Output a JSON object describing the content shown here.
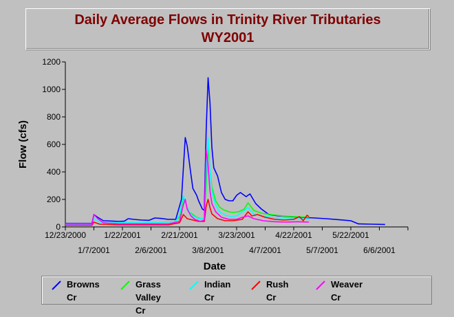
{
  "chart_data": {
    "type": "line",
    "title": "Daily Average Flows in Trinity River Tributaries",
    "subtitle": "WY2001",
    "xlabel": "Date",
    "ylabel": "Flow (cfs)",
    "xlim": [
      "2000-12-23",
      "2001-06-21"
    ],
    "ylim": [
      0,
      1200
    ],
    "yticks": [
      0,
      200,
      400,
      600,
      800,
      1000,
      1200
    ],
    "xticks_upper": [
      "12/23/2000",
      "1/22/2001",
      "2/21/2001",
      "3/23/2001",
      "4/22/2001",
      "5/22/2001"
    ],
    "xticks_lower": [
      "1/7/2001",
      "2/6/2001",
      "3/8/2001",
      "4/7/2001",
      "5/7/2001",
      "6/6/2001"
    ],
    "grid": false,
    "legend": "bottom",
    "series": [
      {
        "name": "Browns Cr",
        "color": "#0000ff",
        "points": [
          [
            "2000-12-23",
            25
          ],
          [
            "2001-01-06",
            25
          ],
          [
            "2001-01-07",
            90
          ],
          [
            "2001-01-09",
            70
          ],
          [
            "2001-01-12",
            45
          ],
          [
            "2001-01-17",
            42
          ],
          [
            "2001-01-20",
            40
          ],
          [
            "2001-01-23",
            42
          ],
          [
            "2001-01-25",
            60
          ],
          [
            "2001-01-28",
            55
          ],
          [
            "2001-02-01",
            50
          ],
          [
            "2001-02-05",
            48
          ],
          [
            "2001-02-08",
            65
          ],
          [
            "2001-02-11",
            62
          ],
          [
            "2001-02-15",
            55
          ],
          [
            "2001-02-19",
            55
          ],
          [
            "2001-02-22",
            200
          ],
          [
            "2001-02-24",
            650
          ],
          [
            "2001-02-25",
            590
          ],
          [
            "2001-02-27",
            380
          ],
          [
            "2001-02-28",
            280
          ],
          [
            "2001-03-02",
            230
          ],
          [
            "2001-03-03",
            190
          ],
          [
            "2001-03-05",
            130
          ],
          [
            "2001-03-06",
            120
          ],
          [
            "2001-03-07",
            700
          ],
          [
            "2001-03-08",
            1085
          ],
          [
            "2001-03-09",
            900
          ],
          [
            "2001-03-10",
            580
          ],
          [
            "2001-03-11",
            430
          ],
          [
            "2001-03-13",
            370
          ],
          [
            "2001-03-15",
            250
          ],
          [
            "2001-03-17",
            200
          ],
          [
            "2001-03-19",
            190
          ],
          [
            "2001-03-21",
            190
          ],
          [
            "2001-03-23",
            230
          ],
          [
            "2001-03-25",
            250
          ],
          [
            "2001-03-28",
            220
          ],
          [
            "2001-03-30",
            240
          ],
          [
            "2001-04-02",
            170
          ],
          [
            "2001-04-05",
            130
          ],
          [
            "2001-04-09",
            90
          ],
          [
            "2001-04-14",
            80
          ],
          [
            "2001-04-20",
            75
          ],
          [
            "2001-04-26",
            70
          ],
          [
            "2001-05-03",
            65
          ],
          [
            "2001-05-09",
            60
          ],
          [
            "2001-05-16",
            52
          ],
          [
            "2001-05-22",
            45
          ],
          [
            "2001-05-26",
            22
          ],
          [
            "2001-06-02",
            20
          ],
          [
            "2001-06-09",
            18
          ]
        ]
      },
      {
        "name": "Grass Valley Cr",
        "color": "#00ff00",
        "points": [
          [
            "2001-02-18",
            35
          ],
          [
            "2001-02-21",
            70
          ],
          [
            "2001-02-23",
            210
          ],
          [
            "2001-02-24",
            180
          ],
          [
            "2001-02-26",
            110
          ],
          [
            "2001-02-28",
            90
          ],
          [
            "2001-03-02",
            70
          ],
          [
            "2001-03-04",
            60
          ],
          [
            "2001-03-06",
            60
          ],
          [
            "2001-03-07",
            300
          ],
          [
            "2001-03-08",
            580
          ],
          [
            "2001-03-09",
            420
          ],
          [
            "2001-03-10",
            290
          ],
          [
            "2001-03-12",
            190
          ],
          [
            "2001-03-14",
            145
          ],
          [
            "2001-03-16",
            125
          ],
          [
            "2001-03-19",
            110
          ],
          [
            "2001-03-21",
            105
          ],
          [
            "2001-03-24",
            110
          ],
          [
            "2001-03-27",
            130
          ],
          [
            "2001-03-29",
            175
          ],
          [
            "2001-04-01",
            120
          ],
          [
            "2001-04-05",
            100
          ],
          [
            "2001-04-10",
            90
          ],
          [
            "2001-04-16",
            80
          ],
          [
            "2001-04-22",
            75
          ],
          [
            "2001-04-27",
            72
          ],
          [
            "2001-04-30",
            70
          ]
        ]
      },
      {
        "name": "Indian Cr",
        "color": "#00ffff",
        "points": [
          [
            "2000-12-23",
            20
          ],
          [
            "2001-01-06",
            20
          ],
          [
            "2001-01-07",
            60
          ],
          [
            "2001-01-10",
            35
          ],
          [
            "2001-01-15",
            30
          ],
          [
            "2001-01-22",
            32
          ],
          [
            "2001-02-01",
            30
          ],
          [
            "2001-02-10",
            32
          ],
          [
            "2001-02-19",
            40
          ],
          [
            "2001-02-21",
            90
          ],
          [
            "2001-02-23",
            230
          ],
          [
            "2001-02-24",
            180
          ],
          [
            "2001-02-26",
            110
          ],
          [
            "2001-02-28",
            80
          ],
          [
            "2001-03-03",
            60
          ],
          [
            "2001-03-06",
            60
          ],
          [
            "2001-03-07",
            400
          ],
          [
            "2001-03-08",
            650
          ],
          [
            "2001-03-09",
            420
          ],
          [
            "2001-03-10",
            260
          ],
          [
            "2001-03-12",
            160
          ],
          [
            "2001-03-14",
            110
          ],
          [
            "2001-03-17",
            85
          ],
          [
            "2001-03-20",
            75
          ],
          [
            "2001-03-23",
            80
          ],
          [
            "2001-03-26",
            110
          ],
          [
            "2001-03-29",
            140
          ],
          [
            "2001-04-01",
            95
          ],
          [
            "2001-04-05",
            80
          ],
          [
            "2001-04-10",
            70
          ],
          [
            "2001-04-15",
            65
          ],
          [
            "2001-04-22",
            65
          ],
          [
            "2001-04-27",
            60
          ],
          [
            "2001-04-30",
            58
          ]
        ]
      },
      {
        "name": "Rush Cr",
        "color": "#ff0000",
        "points": [
          [
            "2000-12-23",
            12
          ],
          [
            "2001-01-06",
            12
          ],
          [
            "2001-01-07",
            35
          ],
          [
            "2001-01-10",
            20
          ],
          [
            "2001-01-20",
            15
          ],
          [
            "2001-02-01",
            15
          ],
          [
            "2001-02-15",
            15
          ],
          [
            "2001-02-21",
            30
          ],
          [
            "2001-02-23",
            90
          ],
          [
            "2001-02-25",
            60
          ],
          [
            "2001-02-28",
            50
          ],
          [
            "2001-03-03",
            40
          ],
          [
            "2001-03-06",
            40
          ],
          [
            "2001-03-07",
            150
          ],
          [
            "2001-03-08",
            200
          ],
          [
            "2001-03-09",
            140
          ],
          [
            "2001-03-10",
            95
          ],
          [
            "2001-03-13",
            60
          ],
          [
            "2001-03-17",
            45
          ],
          [
            "2001-03-21",
            45
          ],
          [
            "2001-03-26",
            55
          ],
          [
            "2001-03-29",
            110
          ],
          [
            "2001-03-31",
            80
          ],
          [
            "2001-04-03",
            90
          ],
          [
            "2001-04-07",
            70
          ],
          [
            "2001-04-12",
            55
          ],
          [
            "2001-04-17",
            50
          ],
          [
            "2001-04-22",
            55
          ],
          [
            "2001-04-25",
            75
          ],
          [
            "2001-04-27",
            45
          ],
          [
            "2001-04-29",
            85
          ],
          [
            "2001-04-30",
            75
          ]
        ]
      },
      {
        "name": "Weaver Cr",
        "color": "#ff00ff",
        "points": [
          [
            "2000-12-23",
            15
          ],
          [
            "2001-01-06",
            15
          ],
          [
            "2001-01-07",
            90
          ],
          [
            "2001-01-09",
            60
          ],
          [
            "2001-01-12",
            30
          ],
          [
            "2001-01-20",
            22
          ],
          [
            "2001-02-01",
            22
          ],
          [
            "2001-02-15",
            22
          ],
          [
            "2001-02-21",
            40
          ],
          [
            "2001-02-23",
            160
          ],
          [
            "2001-02-24",
            200
          ],
          [
            "2001-02-25",
            130
          ],
          [
            "2001-02-27",
            80
          ],
          [
            "2001-03-01",
            55
          ],
          [
            "2001-03-04",
            40
          ],
          [
            "2001-03-06",
            50
          ],
          [
            "2001-03-07",
            560
          ],
          [
            "2001-03-08",
            450
          ],
          [
            "2001-03-09",
            260
          ],
          [
            "2001-03-10",
            170
          ],
          [
            "2001-03-12",
            110
          ],
          [
            "2001-03-15",
            70
          ],
          [
            "2001-03-19",
            55
          ],
          [
            "2001-03-23",
            55
          ],
          [
            "2001-03-26",
            70
          ],
          [
            "2001-03-29",
            80
          ],
          [
            "2001-04-01",
            60
          ],
          [
            "2001-04-06",
            45
          ],
          [
            "2001-04-12",
            38
          ],
          [
            "2001-04-18",
            35
          ],
          [
            "2001-04-24",
            38
          ],
          [
            "2001-04-30",
            35
          ]
        ]
      }
    ]
  },
  "legend_entries": [
    {
      "line1": "Browns",
      "line2": "Cr",
      "color": "#0000ff"
    },
    {
      "line1": "Grass",
      "line2": "Valley Cr",
      "color": "#00ff00"
    },
    {
      "line1": "Indian Cr",
      "line2": "",
      "color": "#00ffff"
    },
    {
      "line1": "Rush Cr",
      "line2": "",
      "color": "#ff0000"
    },
    {
      "line1": "Weaver",
      "line2": "Cr",
      "color": "#ff00ff"
    }
  ]
}
